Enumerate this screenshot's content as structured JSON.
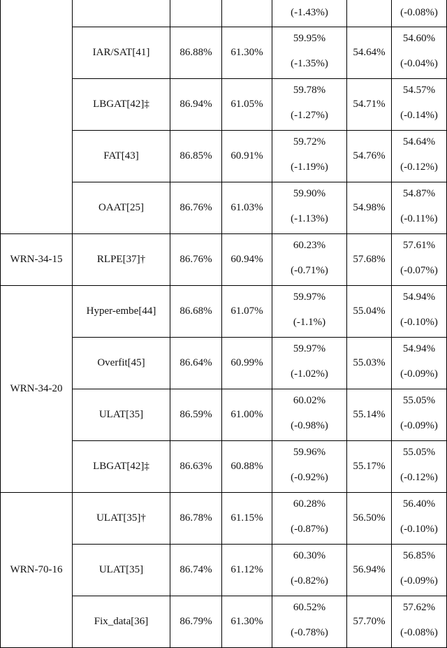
{
  "table": {
    "groups": [
      {
        "architecture": "",
        "rows": [
          {
            "method": "",
            "c1": "",
            "c2": "",
            "c3_value": "",
            "c3_drop": "(-1.43%)",
            "c4": "",
            "c5_value": "",
            "c5_drop": "(-0.08%)"
          },
          {
            "method": "IAR/SAT[41]",
            "c1": "86.88%",
            "c2": "61.30%",
            "c3_value": "59.95%",
            "c3_drop": "(-1.35%)",
            "c4": "54.64%",
            "c5_value": "54.60%",
            "c5_drop": "(-0.04%)"
          },
          {
            "method": "LBGAT[42]‡",
            "c1": "86.94%",
            "c2": "61.05%",
            "c3_value": "59.78%",
            "c3_drop": "(-1.27%)",
            "c4": "54.71%",
            "c5_value": "54.57%",
            "c5_drop": "(-0.14%)"
          },
          {
            "method": "FAT[43]",
            "c1": "86.85%",
            "c2": "60.91%",
            "c3_value": "59.72%",
            "c3_drop": "(-1.19%)",
            "c4": "54.76%",
            "c5_value": "54.64%",
            "c5_drop": "(-0.12%)"
          },
          {
            "method": "OAAT[25]",
            "c1": "86.76%",
            "c2": "61.03%",
            "c3_value": "59.90%",
            "c3_drop": "(-1.13%)",
            "c4": "54.98%",
            "c5_value": "54.87%",
            "c5_drop": "(-0.11%)"
          }
        ]
      },
      {
        "architecture": "WRN-34-15",
        "rows": [
          {
            "method": "RLPE[37]†",
            "c1": "86.76%",
            "c2": "60.94%",
            "c3_value": "60.23%",
            "c3_drop": "(-0.71%)",
            "c4": "57.68%",
            "c5_value": "57.61%",
            "c5_drop": "(-0.07%)"
          }
        ]
      },
      {
        "architecture": "WRN-34-20",
        "rows": [
          {
            "method": "Hyper-embe[44]",
            "c1": "86.68%",
            "c2": "61.07%",
            "c3_value": "59.97%",
            "c3_drop": "(-1.1%)",
            "c4": "55.04%",
            "c5_value": "54.94%",
            "c5_drop": "(-0.10%)"
          },
          {
            "method": "Overfit[45]",
            "c1": "86.64%",
            "c2": "60.99%",
            "c3_value": "59.97%",
            "c3_drop": "(-1.02%)",
            "c4": "55.03%",
            "c5_value": "54.94%",
            "c5_drop": "(-0.09%)"
          },
          {
            "method": "ULAT[35]",
            "c1": "86.59%",
            "c2": "61.00%",
            "c3_value": "60.02%",
            "c3_drop": "(-0.98%)",
            "c4": "55.14%",
            "c5_value": "55.05%",
            "c5_drop": "(-0.09%)"
          },
          {
            "method": "LBGAT[42]‡",
            "c1": "86.63%",
            "c2": "60.88%",
            "c3_value": "59.96%",
            "c3_drop": "(-0.92%)",
            "c4": "55.17%",
            "c5_value": "55.05%",
            "c5_drop": "(-0.12%)"
          }
        ]
      },
      {
        "architecture": "WRN-70-16",
        "rows": [
          {
            "method": "ULAT[35]†",
            "c1": "86.78%",
            "c2": "61.15%",
            "c3_value": "60.28%",
            "c3_drop": "(-0.87%)",
            "c4": "56.50%",
            "c5_value": "56.40%",
            "c5_drop": "(-0.10%)"
          },
          {
            "method": "ULAT[35]",
            "c1": "86.74%",
            "c2": "61.12%",
            "c3_value": "60.30%",
            "c3_drop": "(-0.82%)",
            "c4": "56.94%",
            "c5_value": "56.85%",
            "c5_drop": "(-0.09%)"
          },
          {
            "method": "Fix_data[36]",
            "c1": "86.79%",
            "c2": "61.30%",
            "c3_value": "60.52%",
            "c3_drop": "(-0.78%)",
            "c4": "57.70%",
            "c5_value": "57.62%",
            "c5_drop": "(-0.08%)"
          }
        ]
      }
    ]
  }
}
